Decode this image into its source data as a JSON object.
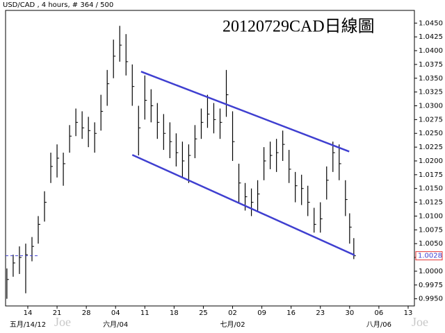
{
  "chart_data": {
    "type": "ohlc",
    "header": "USD/CAD , 4 hours, # 364 / 500",
    "title": "20120729CAD日線圖",
    "watermarks": [
      "Joe",
      "Joe"
    ],
    "color": "#000000",
    "x": [
      -5,
      -3.5,
      -2,
      -0.5,
      1,
      2.5,
      4,
      5.5,
      7,
      8.5,
      10,
      11.5,
      13,
      14.5,
      16,
      17.5,
      19,
      20.5,
      22,
      23.5,
      25,
      26.5,
      28,
      29.5,
      31,
      32.5,
      34,
      35.5,
      37,
      38.5,
      40,
      41.5,
      43,
      44.5,
      46,
      47.5,
      49,
      50.5,
      52,
      53.5,
      55,
      56.5,
      58,
      59.5,
      61,
      62.5,
      64,
      65.5,
      67,
      68.5,
      70,
      71.5,
      73,
      74.5,
      76,
      77,
      78
    ],
    "high": [
      1.0005,
      1.003,
      1.0045,
      1.005,
      1.0062,
      1.01,
      1.0145,
      1.0215,
      1.023,
      1.0215,
      1.0265,
      1.0295,
      1.029,
      1.028,
      1.027,
      1.032,
      1.0365,
      1.042,
      1.0445,
      1.043,
      1.0375,
      1.03,
      1.0355,
      1.033,
      1.0305,
      1.0285,
      1.027,
      1.025,
      1.0235,
      1.023,
      1.0265,
      1.0295,
      1.032,
      1.0305,
      1.0295,
      1.0365,
      1.029,
      1.0195,
      1.016,
      1.015,
      1.0165,
      1.0225,
      1.0235,
      1.024,
      1.0255,
      1.022,
      1.018,
      1.0175,
      1.0155,
      1.0115,
      1.0125,
      1.019,
      1.0235,
      1.023,
      1.0165,
      1.0105,
      1.006
    ],
    "low": [
      0.995,
      0.999,
      0.9995,
      0.996,
      1.0018,
      1.005,
      1.009,
      1.016,
      1.017,
      1.0155,
      1.0215,
      1.0245,
      1.024,
      1.0225,
      1.0215,
      1.0255,
      1.03,
      1.035,
      1.038,
      1.0355,
      1.03,
      1.021,
      1.0275,
      1.027,
      1.024,
      1.022,
      1.0205,
      1.019,
      1.017,
      1.016,
      1.0205,
      1.024,
      1.026,
      1.025,
      1.024,
      1.028,
      1.02,
      1.0125,
      1.011,
      1.01,
      1.011,
      1.0165,
      1.0185,
      1.018,
      1.02,
      1.016,
      1.0125,
      1.012,
      1.01,
      1.007,
      1.007,
      1.013,
      1.018,
      1.0165,
      1.01,
      1.005,
      1.0022
    ],
    "close": [
      0.9985,
      1.0015,
      1.0025,
      1.003,
      1.0045,
      1.0085,
      1.0125,
      1.019,
      1.0205,
      1.0195,
      1.0245,
      1.027,
      1.026,
      1.0255,
      1.025,
      1.029,
      1.034,
      1.039,
      1.041,
      1.038,
      1.0335,
      1.026,
      1.031,
      1.03,
      1.027,
      1.025,
      1.0235,
      1.0215,
      1.02,
      1.021,
      1.024,
      1.027,
      1.0285,
      1.0275,
      1.027,
      1.032,
      1.0235,
      1.016,
      1.0135,
      1.0125,
      1.014,
      1.02,
      1.021,
      1.0215,
      1.023,
      1.0185,
      1.0155,
      1.015,
      1.0125,
      1.0085,
      1.0095,
      1.0165,
      1.0215,
      1.0195,
      1.013,
      1.008,
      1.0028
    ],
    "trendlines": [
      {
        "x": [
          27.1,
          76.9
        ],
        "y": [
          1.0362,
          1.0217
        ],
        "color": "#3f3fd0"
      },
      {
        "x": [
          25.0,
          78.2
        ],
        "y": [
          1.0211,
          1.0029
        ],
        "color": "#3f3fd0"
      }
    ],
    "last_price": 1.0028,
    "last_price_color": "#e03030",
    "last_price_line_color": "#3f3fd0",
    "xlim": [
      -5.32,
      92.5
    ],
    "ylim": [
      0.9937,
      1.0473
    ],
    "xticks": [
      {
        "value": 0,
        "label": "14"
      },
      {
        "value": 7,
        "label": "21"
      },
      {
        "value": 14,
        "label": "28"
      },
      {
        "value": 21,
        "label": "04"
      },
      {
        "value": 28,
        "label": "11"
      },
      {
        "value": 35,
        "label": "18"
      },
      {
        "value": 42,
        "label": "25"
      },
      {
        "value": 49,
        "label": "02"
      },
      {
        "value": 56,
        "label": "09"
      },
      {
        "value": 63,
        "label": "16"
      },
      {
        "value": 70,
        "label": "23"
      },
      {
        "value": 77,
        "label": "30"
      },
      {
        "value": 84,
        "label": "06"
      },
      {
        "value": 91,
        "label": "13"
      }
    ],
    "month_labels": [
      {
        "value": 0,
        "label": "五月/14/12"
      },
      {
        "value": 21,
        "label": "六月/04"
      },
      {
        "value": 49,
        "label": "七月/02"
      },
      {
        "value": 84,
        "label": "八月/06"
      }
    ],
    "yticks": [
      {
        "value": 0.995,
        "label": "0.9950"
      },
      {
        "value": 0.9975,
        "label": "0.9975"
      },
      {
        "value": 1.0,
        "label": "1.0000"
      },
      {
        "value": 1.0025,
        "label": "1.0025"
      },
      {
        "value": 1.005,
        "label": "1.0050"
      },
      {
        "value": 1.0075,
        "label": "1.0075"
      },
      {
        "value": 1.01,
        "label": "1.0100"
      },
      {
        "value": 1.0125,
        "label": "1.0125"
      },
      {
        "value": 1.015,
        "label": "1.0150"
      },
      {
        "value": 1.0175,
        "label": "1.0175"
      },
      {
        "value": 1.02,
        "label": "1.0200"
      },
      {
        "value": 1.0225,
        "label": "1.0225"
      },
      {
        "value": 1.025,
        "label": "1.0250"
      },
      {
        "value": 1.0275,
        "label": "1.0275"
      },
      {
        "value": 1.03,
        "label": "1.0300"
      },
      {
        "value": 1.0325,
        "label": "1.0325"
      },
      {
        "value": 1.035,
        "label": "1.0350"
      },
      {
        "value": 1.0375,
        "label": "1.0375"
      },
      {
        "value": 1.04,
        "label": "1.0400"
      },
      {
        "value": 1.0425,
        "label": "1.0425"
      },
      {
        "value": 1.045,
        "label": "1.0450"
      }
    ]
  }
}
